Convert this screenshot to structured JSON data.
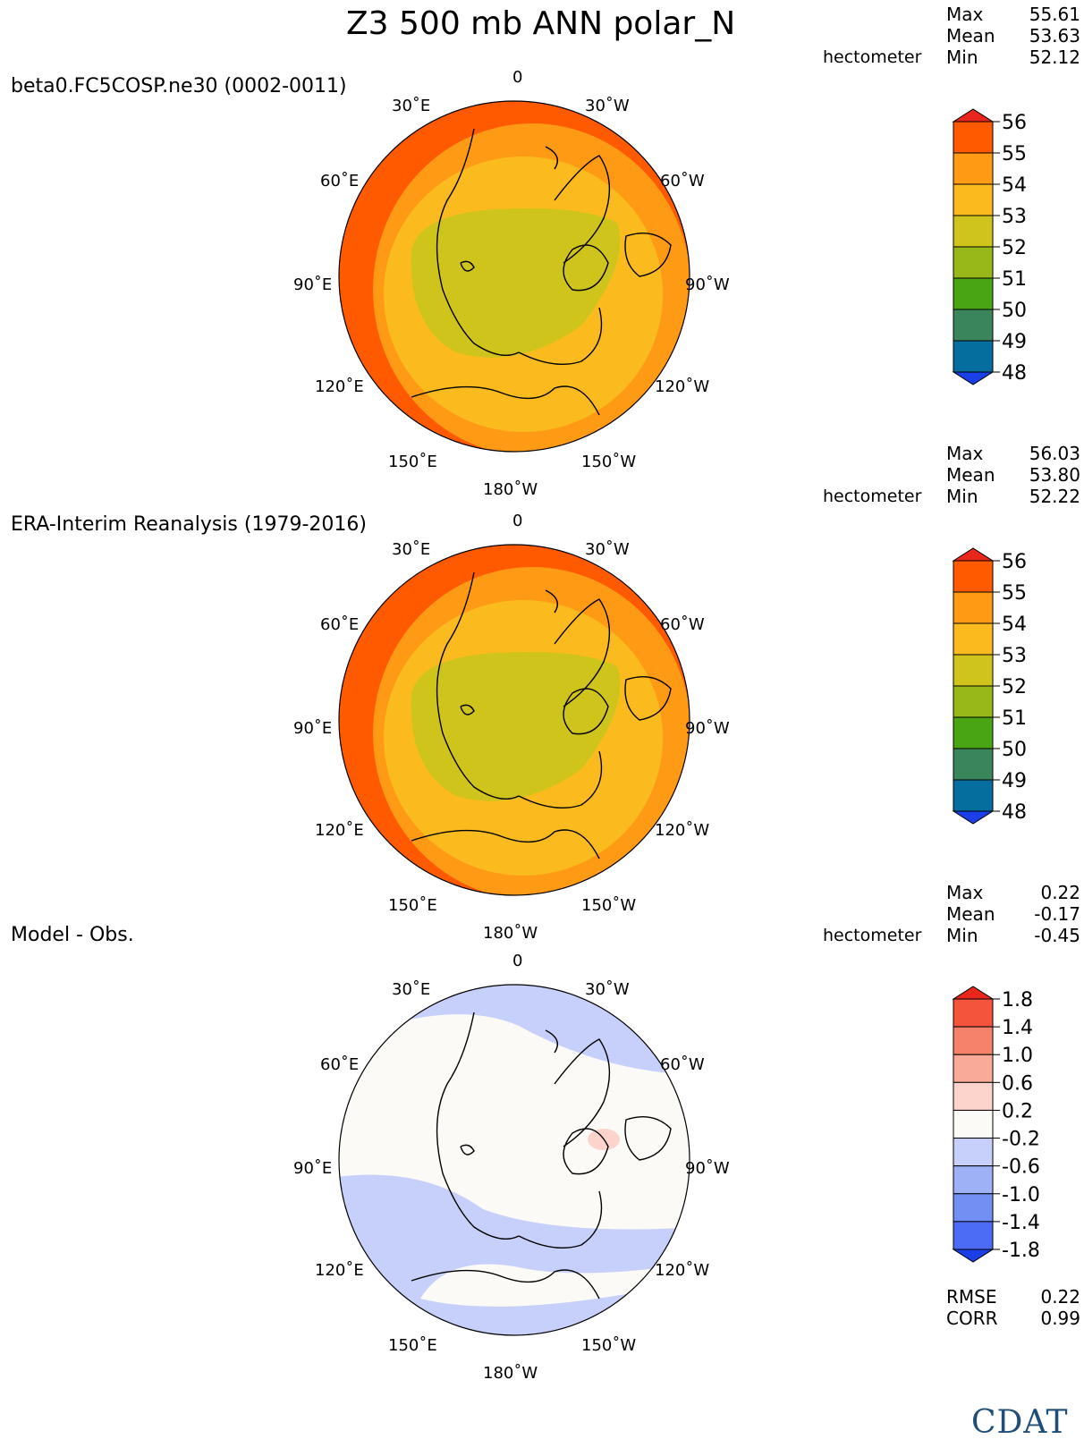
{
  "figure": {
    "title": "Z3 500 mb ANN polar_N",
    "center_label": "0"
  },
  "panels": [
    {
      "id": "test",
      "title": "beta0.FC5COSP.ne30 (0002-0011)",
      "unit": "hectometer",
      "stats": {
        "Max": "55.61",
        "Mean": "53.63",
        "Min": "52.12"
      },
      "lon_labels": {
        "top_left": "30˚E",
        "top_right": "30˚W",
        "ul": "60˚E",
        "ur": "60˚W",
        "l": "90˚E",
        "r": "90˚W",
        "ll": "120˚E",
        "lr": "120˚W",
        "bl": "150˚E",
        "br": "150˚W",
        "bottom": "180˚W"
      },
      "colorbar": {
        "levels": [
          "56",
          "55",
          "54",
          "53",
          "52",
          "51",
          "50",
          "49",
          "48"
        ],
        "colors": [
          "#ff5a00",
          "#ff9a14",
          "#fbbb1e",
          "#cfc41c",
          "#98b81a",
          "#4aa514",
          "#3a855c",
          "#056e9e"
        ],
        "arrow_top": "#e8261c",
        "arrow_bottom": "#1a3fe6"
      },
      "bands": [
        "#cfc41c",
        "#fbbb1e",
        "#ff9a14",
        "#ff5a00"
      ]
    },
    {
      "id": "ref",
      "title": "ERA-Interim Reanalysis (1979-2016)",
      "unit": "hectometer",
      "stats": {
        "Max": "56.03",
        "Mean": "53.80",
        "Min": "52.22"
      },
      "lon_labels": {
        "top_left": "30˚E",
        "top_right": "30˚W",
        "ul": "60˚E",
        "ur": "60˚W",
        "l": "90˚E",
        "r": "90˚W",
        "ll": "120˚E",
        "lr": "120˚W",
        "bl": "150˚E",
        "br": "150˚W",
        "bottom": "180˚W"
      },
      "colorbar": {
        "levels": [
          "56",
          "55",
          "54",
          "53",
          "52",
          "51",
          "50",
          "49",
          "48"
        ],
        "colors": [
          "#ff5a00",
          "#ff9a14",
          "#fbbb1e",
          "#cfc41c",
          "#98b81a",
          "#4aa514",
          "#3a855c",
          "#056e9e"
        ],
        "arrow_top": "#e8261c",
        "arrow_bottom": "#1a3fe6"
      },
      "bands": [
        "#cfc41c",
        "#fbbb1e",
        "#ff9a14",
        "#ff5a00"
      ]
    },
    {
      "id": "diff",
      "title": "Model - Obs.",
      "unit": "hectometer",
      "stats": {
        "Max": "0.22",
        "Mean": "-0.17",
        "Min": "-0.45"
      },
      "lon_labels": {
        "top_left": "30˚E",
        "top_right": "30˚W",
        "ul": "60˚E",
        "ur": "60˚W",
        "l": "90˚E",
        "r": "90˚W",
        "ll": "120˚E",
        "lr": "120˚W",
        "bl": "150˚E",
        "br": "150˚W",
        "bottom": "180˚W"
      },
      "colorbar": {
        "levels": [
          "1.8",
          "1.4",
          "1.0",
          "0.6",
          "0.2",
          "-0.2",
          "-0.6",
          "-1.0",
          "-1.4",
          "-1.8"
        ],
        "colors": [
          "#f4543c",
          "#f7826a",
          "#f9aa98",
          "#fcd4cc",
          "#fcfaf6",
          "#c6d0fa",
          "#9eb0f6",
          "#7290f4",
          "#4c6cf6"
        ],
        "arrow_top": "#e8261c",
        "arrow_bottom": "#1a3fe6"
      },
      "bands": [
        "#fcfaf6",
        "#c6d0fa"
      ]
    }
  ],
  "diff_metrics": {
    "RMSE": "0.22",
    "CORR": "0.99"
  },
  "logo": {
    "text": "CDAT"
  }
}
